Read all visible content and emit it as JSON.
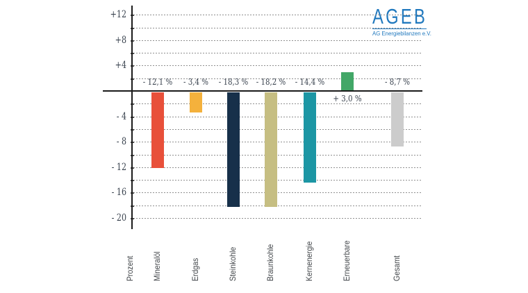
{
  "logo": {
    "title": "AGEB",
    "subtitle": "AG Energiebilanzen e.V.",
    "color": "#2179be"
  },
  "chart_data": {
    "type": "bar",
    "title": "",
    "ylabel": "Prozent",
    "xlabel": "",
    "categories": [
      "Mineralöl",
      "Erdgas",
      "Steinkohle",
      "Braunkohle",
      "Kernenergie",
      "Erneuerbare",
      "Gesamt"
    ],
    "values": [
      -12.1,
      -3.4,
      -18.3,
      -18.2,
      -14.4,
      3.0,
      -8.7
    ],
    "value_labels": [
      "- 12,1 %",
      "- 3,4 %",
      "- 18,3 %",
      "- 18,2 %",
      "- 14,4 %",
      "+ 3,0 %",
      "- 8,7 %"
    ],
    "bar_colors": [
      "#e8503a",
      "#f4b13c",
      "#17304a",
      "#c6be82",
      "#1c96a4",
      "#42a767",
      "#cccccc"
    ],
    "ylim": [
      -20,
      12
    ],
    "yticks": [
      {
        "value": 12,
        "label": "+12"
      },
      {
        "value": 8,
        "label": "+8"
      },
      {
        "value": 4,
        "label": "+4"
      },
      {
        "value": -4,
        "label": "- 4"
      },
      {
        "value": -8,
        "label": "- 8"
      },
      {
        "value": -12,
        "label": "- 12"
      },
      {
        "value": -16,
        "label": "- 16"
      },
      {
        "value": -20,
        "label": "- 20"
      }
    ],
    "gridline_values": [
      12,
      10,
      8,
      6,
      4,
      2,
      -2,
      -4,
      -6,
      -8,
      -10,
      -12,
      -14,
      -16,
      -18,
      -20
    ],
    "grid": true,
    "legend": false,
    "grid_color": "#8f8f8f",
    "axis_color": "#1a1a1a",
    "label_color": "#39424e"
  }
}
